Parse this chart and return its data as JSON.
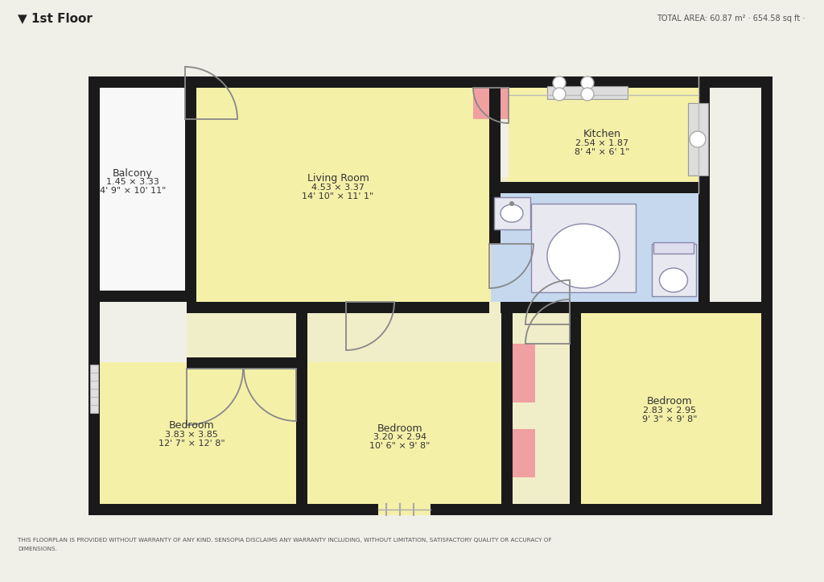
{
  "title": "▼ 1st Floor",
  "total_area": "TOTAL AREA: 60.87 m² · 654.58 sq ft ·",
  "disclaimer": "THIS FLOORPLAN IS PROVIDED WITHOUT WARRANTY OF ANY KIND. SENSOPIA DISCLAIMS ANY WARRANTY INCLUDING, WITHOUT LIMITATION, SATISFACTORY QUALITY OR ACCURACY OF\nDIMENSIONS.",
  "bg_color": "#f0efe8",
  "wall_color": "#1a1a1a",
  "room_yellow": "#f5f0a8",
  "room_blue": "#c5d8ee",
  "room_pink": "#f0a0a0",
  "room_white": "#f8f8f8",
  "room_corridor": "#f0eec8",
  "text_color": "#444444",
  "label_color": "#333333"
}
